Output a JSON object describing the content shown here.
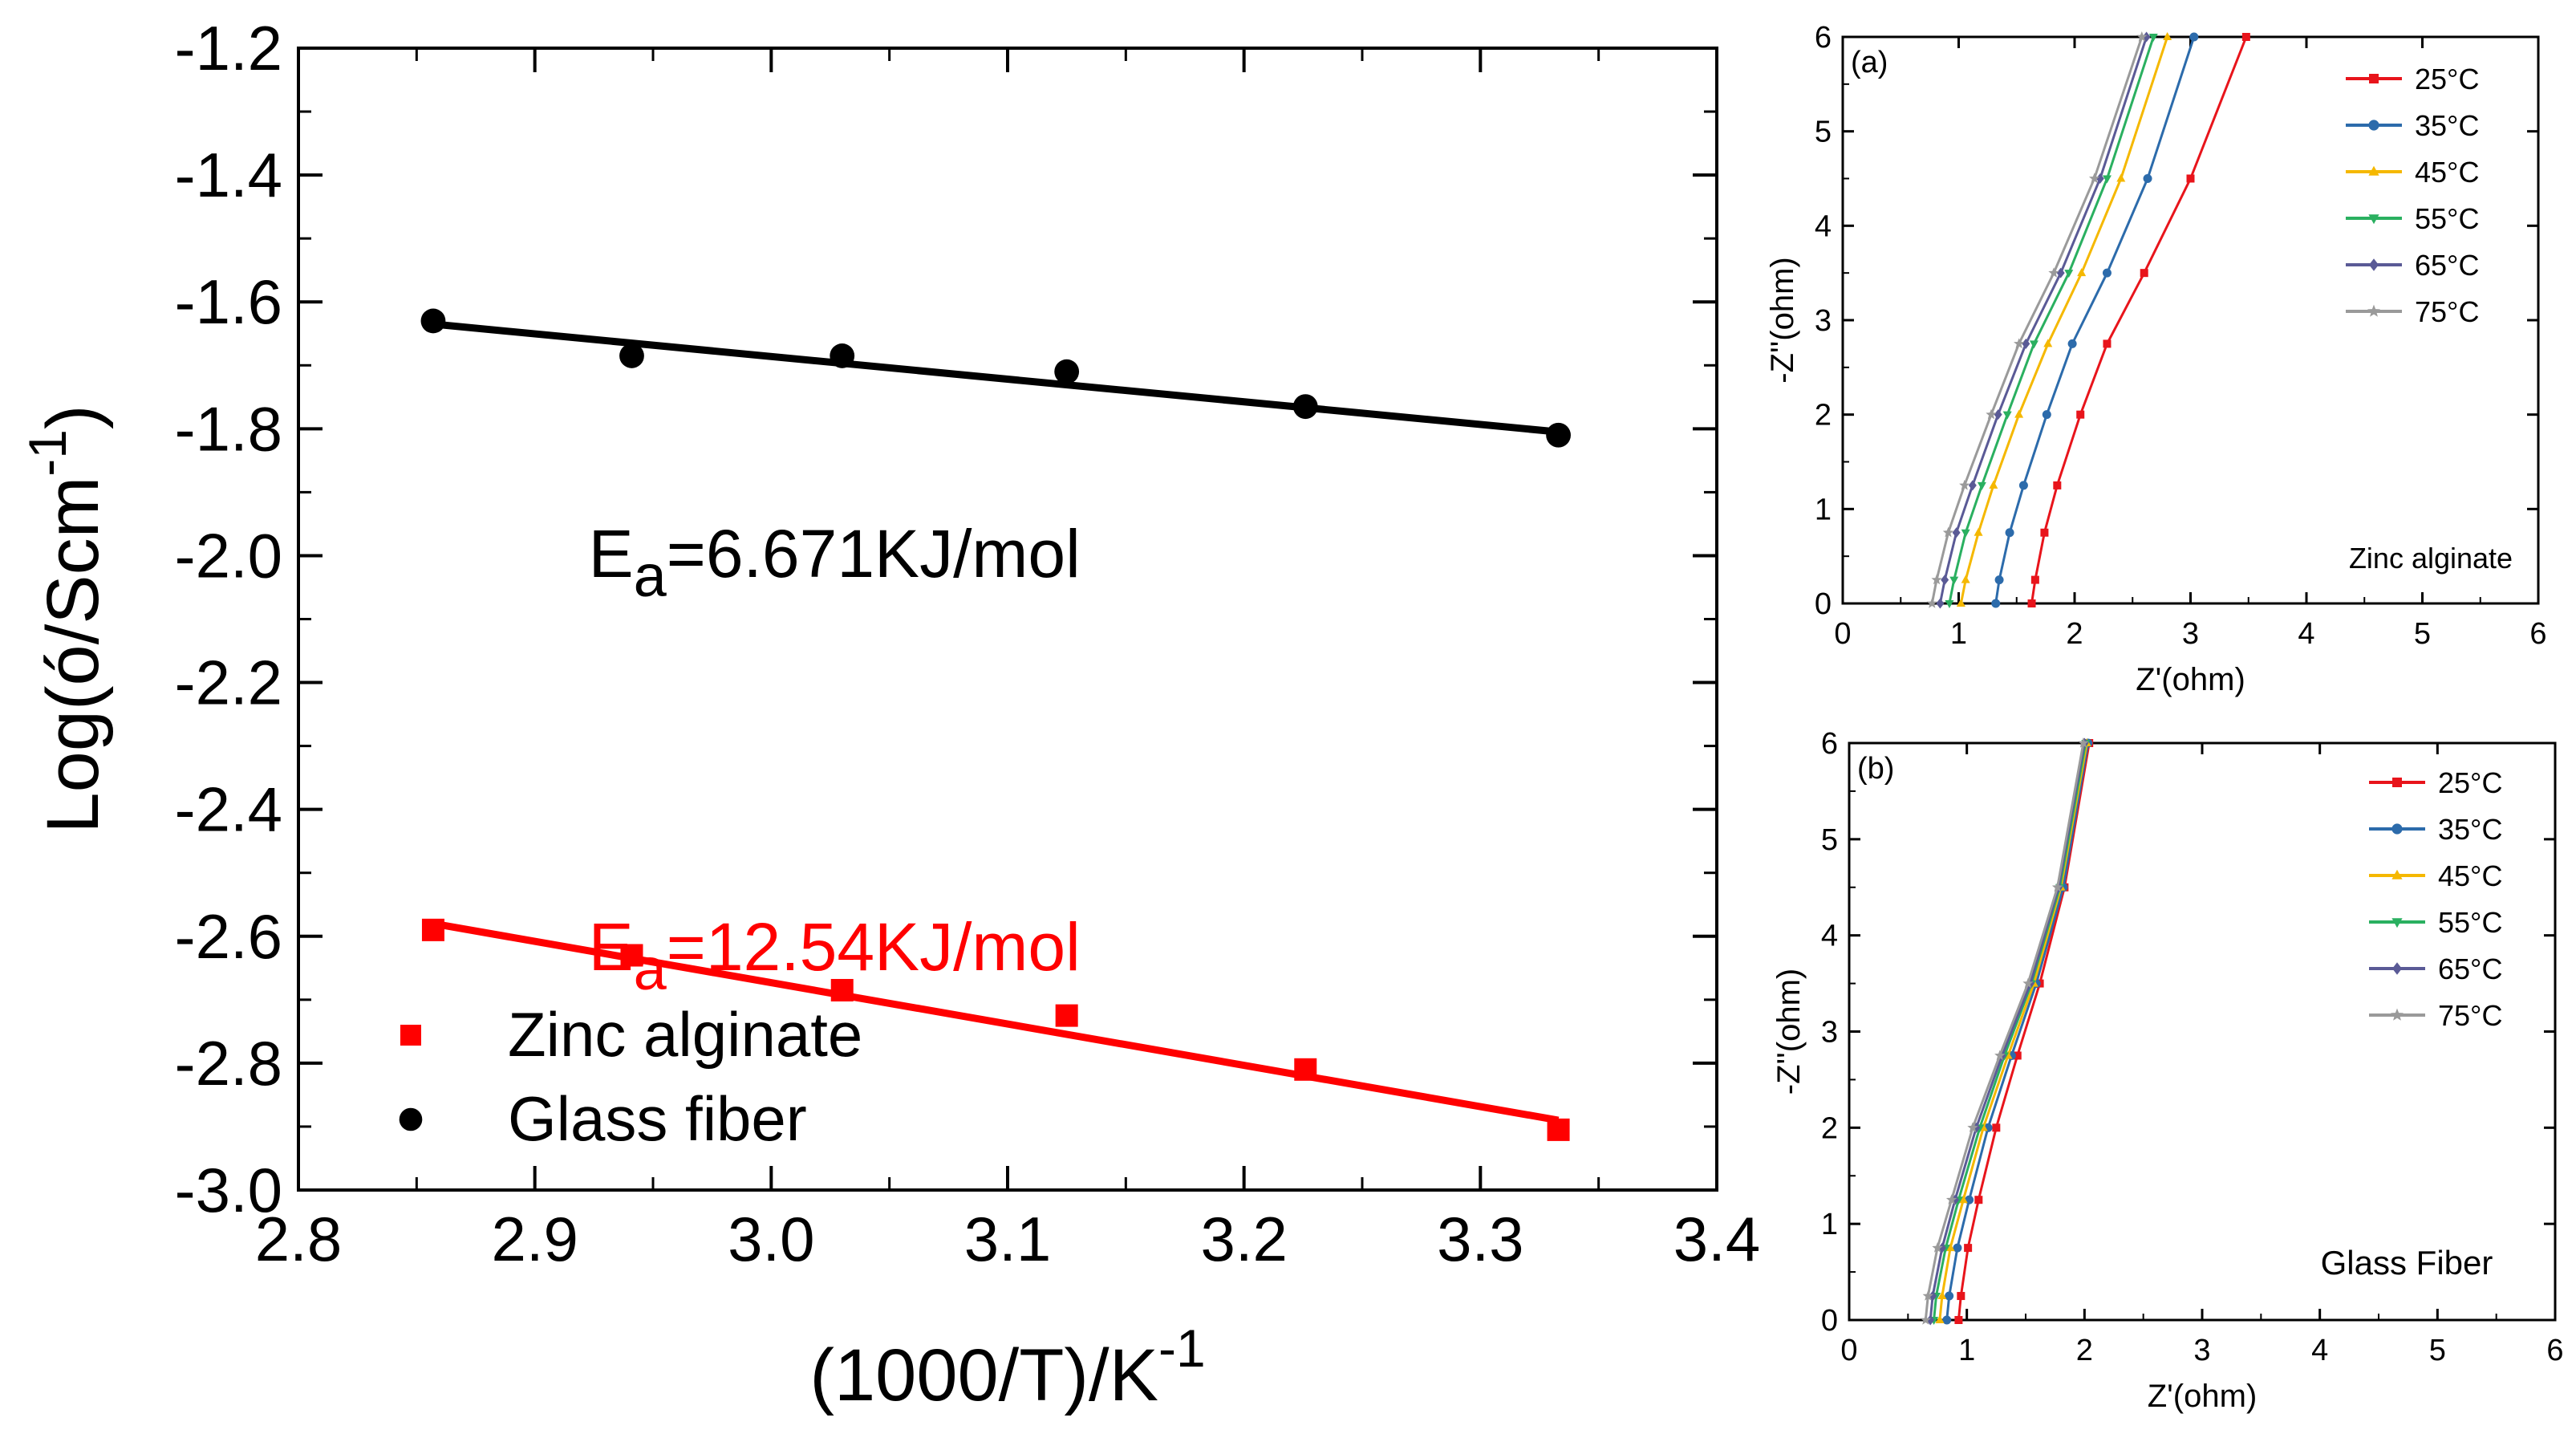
{
  "colors": {
    "axis": "#000000",
    "glass": "#000000",
    "zinc": "#ff0000",
    "t25": "#e8141b",
    "t35": "#2c6bab",
    "t45": "#f5b800",
    "t55": "#2ab060",
    "t65": "#5a5a96",
    "t75": "#9a9a9a"
  },
  "chart_data": [
    {
      "type": "scatter",
      "id": "arrhenius",
      "title": "",
      "xlabel": "(1000/T)/K",
      "xlabel_sup": "-1",
      "ylabel": "Log(ó/Scm",
      "ylabel_sup": "-1",
      "ylabel_close": ")",
      "xlim": [
        2.8,
        3.4
      ],
      "ylim": [
        -3.0,
        -1.2
      ],
      "xticks": [
        2.8,
        2.9,
        3.0,
        3.1,
        3.2,
        3.3,
        3.4
      ],
      "xtick_labels": [
        "2.8",
        "2.9",
        "3.0",
        "3.1",
        "3.2",
        "3.3",
        "3.4"
      ],
      "yticks": [
        -1.2,
        -1.4,
        -1.6,
        -1.8,
        -2.0,
        -2.2,
        -2.4,
        -2.6,
        -2.8,
        -3.0
      ],
      "ytick_labels": [
        "-1.2",
        "-1.4",
        "-1.6",
        "-1.8",
        "-2.0",
        "-2.2",
        "-2.4",
        "-2.6",
        "-2.8",
        "-3.0"
      ],
      "series": [
        {
          "name": "Zinc alginate",
          "color": "#ff0000",
          "marker": "square",
          "x": [
            2.857,
            2.941,
            3.03,
            3.125,
            3.226,
            3.333
          ],
          "y": [
            -2.59,
            -2.63,
            -2.685,
            -2.725,
            -2.81,
            -2.905
          ],
          "fit": {
            "x": [
              2.857,
              3.333
            ],
            "y": [
              -2.58,
              -2.89
            ]
          }
        },
        {
          "name": "Glass fiber",
          "color": "#000000",
          "marker": "circle",
          "x": [
            2.857,
            2.941,
            3.03,
            3.125,
            3.226,
            3.333
          ],
          "y": [
            -1.63,
            -1.685,
            -1.685,
            -1.71,
            -1.765,
            -1.81
          ],
          "fit": {
            "x": [
              2.857,
              3.333
            ],
            "y": [
              -1.635,
              -1.805
            ]
          }
        }
      ],
      "legend": [
        {
          "label": "Zinc alginate",
          "marker": "square",
          "color": "#ff0000"
        },
        {
          "label": "Glass fiber",
          "marker": "circle",
          "color": "#000000"
        }
      ],
      "annotations": [
        {
          "base": "E",
          "sub": "a",
          "text": "=6.671KJ/mol",
          "color": "#000000",
          "x": 2.92,
          "y": -1.96
        },
        {
          "base": "E",
          "sub": "a",
          "text": "=12.54KJ/mol",
          "color": "#ff0000",
          "x": 2.92,
          "y": -2.58
        }
      ]
    },
    {
      "type": "line",
      "id": "nyquist-a",
      "panel_label": "(a)",
      "note": "Zinc alginate",
      "xlabel": "Z'(ohm)",
      "ylabel": "-Z''(ohm)",
      "xlim": [
        0,
        6
      ],
      "ylim": [
        0,
        6
      ],
      "ticks": [
        0,
        1,
        2,
        3,
        4,
        5,
        6
      ],
      "tick_labels": [
        "0",
        "1",
        "2",
        "3",
        "4",
        "5",
        "6"
      ],
      "legend_position": "top-right",
      "series": [
        {
          "name": "25°C",
          "color": "#e8141b",
          "marker": "square",
          "x": [
            1.63,
            1.66,
            1.74,
            1.85,
            2.05,
            2.28,
            2.6,
            3.0,
            3.48
          ],
          "y": [
            0,
            0.25,
            0.75,
            1.25,
            2.0,
            2.75,
            3.5,
            4.5,
            6.0
          ]
        },
        {
          "name": "35°C",
          "color": "#2c6bab",
          "marker": "circle",
          "x": [
            1.32,
            1.35,
            1.44,
            1.56,
            1.76,
            1.98,
            2.28,
            2.63,
            3.03
          ],
          "y": [
            0,
            0.25,
            0.75,
            1.25,
            2.0,
            2.75,
            3.5,
            4.5,
            6.0
          ]
        },
        {
          "name": "45°C",
          "color": "#f5b800",
          "marker": "triangle",
          "x": [
            1.02,
            1.06,
            1.17,
            1.3,
            1.52,
            1.77,
            2.06,
            2.4,
            2.8
          ],
          "y": [
            0,
            0.25,
            0.75,
            1.25,
            2.0,
            2.75,
            3.5,
            4.5,
            6.0
          ]
        },
        {
          "name": "55°C",
          "color": "#2ab060",
          "marker": "triangle-down",
          "x": [
            0.92,
            0.96,
            1.06,
            1.2,
            1.42,
            1.65,
            1.95,
            2.28,
            2.68
          ],
          "y": [
            0,
            0.25,
            0.75,
            1.25,
            2.0,
            2.75,
            3.5,
            4.5,
            6.0
          ]
        },
        {
          "name": "65°C",
          "color": "#5a5a96",
          "marker": "diamond",
          "x": [
            0.84,
            0.88,
            0.98,
            1.12,
            1.34,
            1.58,
            1.88,
            2.22,
            2.62
          ],
          "y": [
            0,
            0.25,
            0.75,
            1.25,
            2.0,
            2.75,
            3.5,
            4.5,
            6.0
          ]
        },
        {
          "name": "75°C",
          "color": "#9a9a9a",
          "marker": "star",
          "x": [
            0.77,
            0.81,
            0.91,
            1.05,
            1.28,
            1.52,
            1.82,
            2.17,
            2.58
          ],
          "y": [
            0,
            0.25,
            0.75,
            1.25,
            2.0,
            2.75,
            3.5,
            4.5,
            6.0
          ]
        }
      ]
    },
    {
      "type": "line",
      "id": "nyquist-b",
      "panel_label": "(b)",
      "note": "Glass Fiber",
      "xlabel": "Z'(ohm)",
      "ylabel": "-Z''(ohm)",
      "xlim": [
        0,
        6
      ],
      "ylim": [
        0,
        6
      ],
      "ticks": [
        0,
        1,
        2,
        3,
        4,
        5,
        6
      ],
      "tick_labels": [
        "0",
        "1",
        "2",
        "3",
        "4",
        "5",
        "6"
      ],
      "legend_position": "top-right",
      "series": [
        {
          "name": "25°C",
          "color": "#e8141b",
          "marker": "square",
          "x": [
            0.93,
            0.95,
            1.01,
            1.1,
            1.25,
            1.43,
            1.62,
            1.83,
            2.04
          ],
          "y": [
            0,
            0.25,
            0.75,
            1.25,
            2.0,
            2.75,
            3.5,
            4.5,
            6.0
          ]
        },
        {
          "name": "35°C",
          "color": "#2c6bab",
          "marker": "circle",
          "x": [
            0.83,
            0.85,
            0.92,
            1.02,
            1.18,
            1.38,
            1.59,
            1.82,
            2.03
          ],
          "y": [
            0,
            0.25,
            0.75,
            1.25,
            2.0,
            2.75,
            3.5,
            4.5,
            6.0
          ]
        },
        {
          "name": "45°C",
          "color": "#f5b800",
          "marker": "triangle",
          "x": [
            0.77,
            0.79,
            0.86,
            0.97,
            1.14,
            1.35,
            1.57,
            1.8,
            2.02
          ],
          "y": [
            0,
            0.25,
            0.75,
            1.25,
            2.0,
            2.75,
            3.5,
            4.5,
            6.0
          ]
        },
        {
          "name": "55°C",
          "color": "#2ab060",
          "marker": "triangle-down",
          "x": [
            0.72,
            0.74,
            0.82,
            0.93,
            1.11,
            1.32,
            1.55,
            1.79,
            2.01
          ],
          "y": [
            0,
            0.25,
            0.75,
            1.25,
            2.0,
            2.75,
            3.5,
            4.5,
            6.0
          ]
        },
        {
          "name": "65°C",
          "color": "#5a5a96",
          "marker": "diamond",
          "x": [
            0.69,
            0.71,
            0.79,
            0.9,
            1.08,
            1.3,
            1.54,
            1.78,
            2.0
          ],
          "y": [
            0,
            0.25,
            0.75,
            1.25,
            2.0,
            2.75,
            3.5,
            4.5,
            6.0
          ]
        },
        {
          "name": "75°C",
          "color": "#9a9a9a",
          "marker": "star",
          "x": [
            0.65,
            0.67,
            0.75,
            0.87,
            1.05,
            1.28,
            1.52,
            1.77,
            1.99
          ],
          "y": [
            0,
            0.25,
            0.75,
            1.25,
            2.0,
            2.75,
            3.5,
            4.5,
            6.0
          ]
        }
      ]
    }
  ]
}
